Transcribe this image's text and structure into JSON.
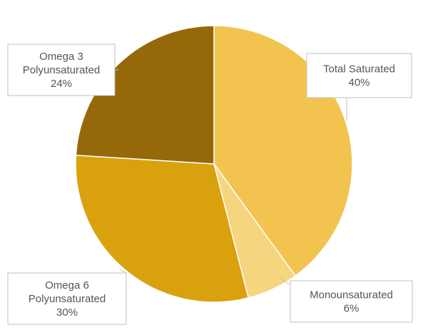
{
  "chart_data": {
    "type": "pie",
    "title": "",
    "slices": [
      {
        "label": "Total Saturated",
        "value": 40,
        "value_label": "40%",
        "color": "#F2C44F"
      },
      {
        "label": "Monounsaturated",
        "value": 6,
        "value_label": "6%",
        "color": "#F6D57F"
      },
      {
        "label": "Omega 6 Polyunsaturated",
        "value": 30,
        "value_label": "30%",
        "color": "#D9A10E"
      },
      {
        "label": "Omega 3 Polyunsaturated",
        "value": 24,
        "value_label": "24%",
        "color": "#95680A"
      }
    ],
    "callouts": [
      {
        "lines": [
          "Total Saturated",
          "40%"
        ]
      },
      {
        "lines": [
          "Monounsaturated",
          "6%"
        ]
      },
      {
        "lines": [
          "Omega 6",
          "Polyunsaturated",
          "30%"
        ]
      },
      {
        "lines": [
          "Omega 3",
          "Polyunsaturated",
          "24%"
        ]
      }
    ]
  }
}
